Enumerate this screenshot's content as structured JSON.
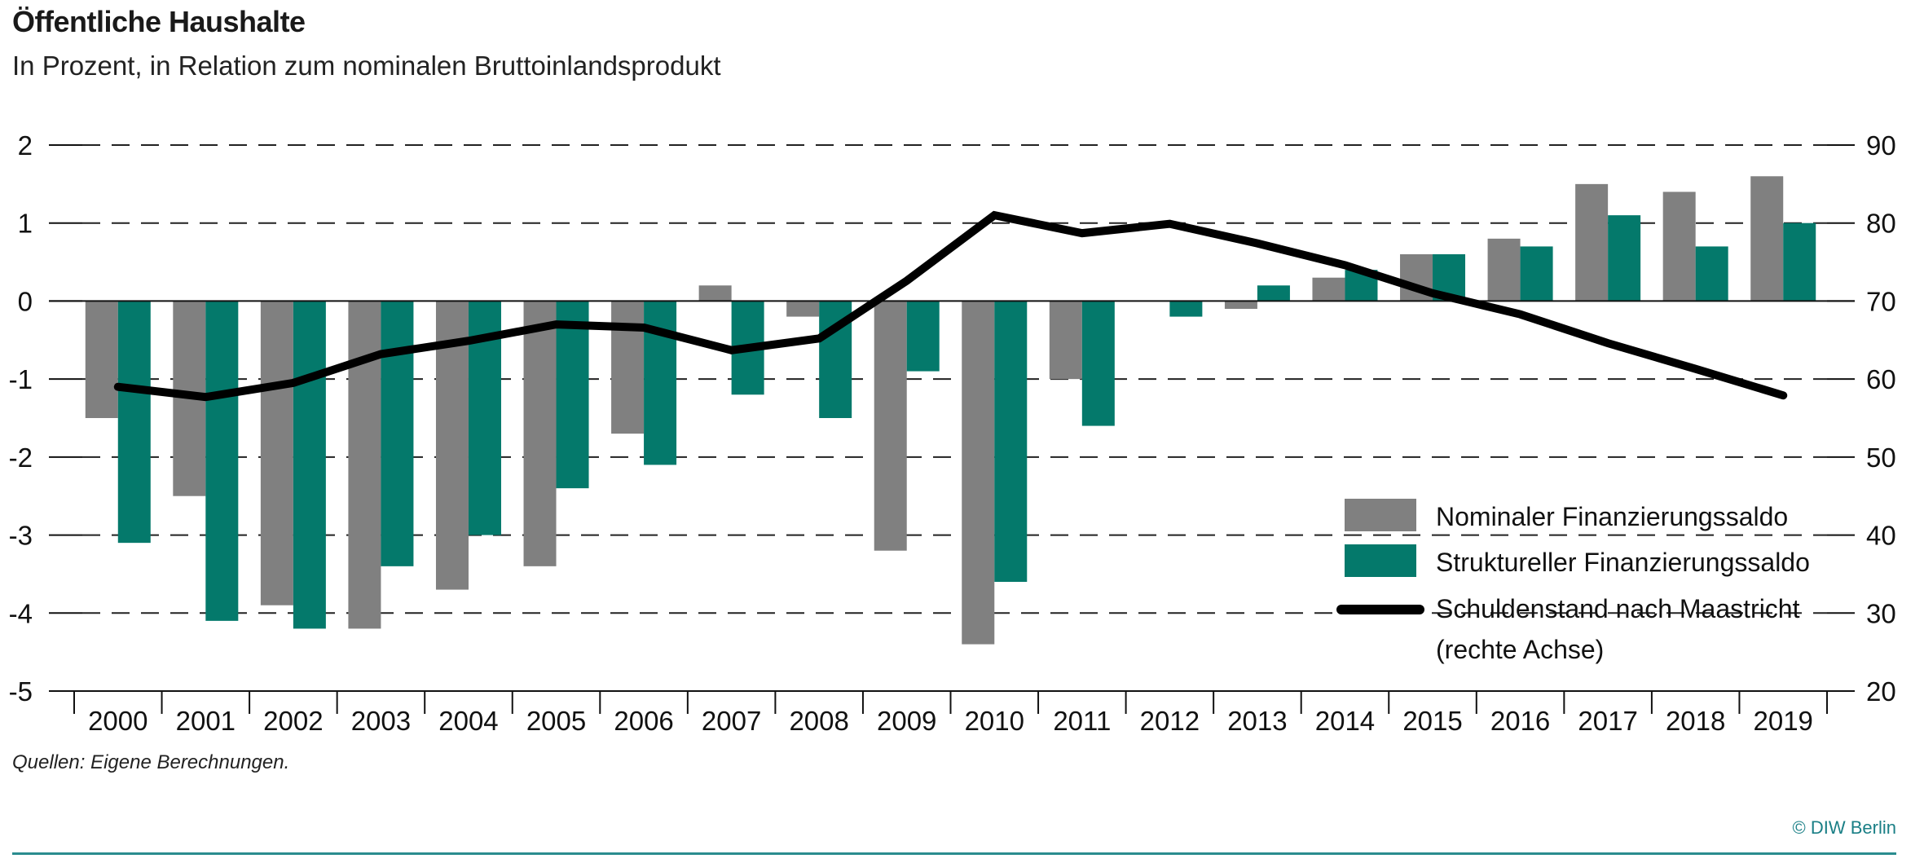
{
  "header": {
    "title": "Öffentliche Haushalte",
    "subtitle": "In Prozent, in Relation zum nominalen Bruttoinlandsprodukt"
  },
  "footer": {
    "source": "Quellen: Eigene Berechnungen.",
    "copyright": "© DIW Berlin"
  },
  "colors": {
    "nominal": "#808080",
    "structural": "#04796b",
    "debt_line": "#000000",
    "brand": "#1a7f86"
  },
  "chart_data": {
    "type": "bar",
    "title": "Öffentliche Haushalte",
    "subtitle": "In Prozent, in Relation zum nominalen Bruttoinlandsprodukt",
    "categories": [
      "2000",
      "2001",
      "2002",
      "2003",
      "2004",
      "2005",
      "2006",
      "2007",
      "2008",
      "2009",
      "2010",
      "2011",
      "2012",
      "2013",
      "2014",
      "2015",
      "2016",
      "2017",
      "2018",
      "2019"
    ],
    "series": [
      {
        "name": "Nominaler Finanzierungssaldo",
        "type": "bar",
        "axis": "left",
        "values": [
          -1.5,
          -2.5,
          -3.9,
          -4.2,
          -3.7,
          -3.4,
          -1.7,
          0.2,
          -0.2,
          -3.2,
          -4.4,
          -1.0,
          0.0,
          -0.1,
          0.3,
          0.6,
          0.8,
          1.5,
          1.4,
          1.6
        ]
      },
      {
        "name": "Struktureller Finanzierungssaldo",
        "type": "bar",
        "axis": "left",
        "values": [
          -3.1,
          -4.1,
          -4.2,
          -3.4,
          -3.0,
          -2.4,
          -2.1,
          -1.2,
          -1.5,
          -0.9,
          -3.6,
          -1.6,
          -0.2,
          0.2,
          0.4,
          0.6,
          0.7,
          1.1,
          0.7,
          1.0
        ]
      },
      {
        "name": "Schuldenstand nach Maastricht (rechte Achse)",
        "type": "line",
        "axis": "right",
        "values": [
          59.0,
          57.7,
          59.5,
          63.2,
          64.9,
          67.0,
          66.6,
          63.7,
          65.2,
          72.6,
          81.0,
          78.7,
          79.9,
          77.4,
          74.6,
          71.0,
          68.3,
          64.6,
          61.3,
          57.9
        ]
      }
    ],
    "left_axis": {
      "ylim": [
        -5,
        2
      ],
      "ticks": [
        "2",
        "1",
        "0",
        "-1",
        "-2",
        "-3",
        "-4",
        "-5"
      ],
      "tick_values": [
        2,
        1,
        0,
        -1,
        -2,
        -3,
        -4,
        -5
      ]
    },
    "right_axis": {
      "ylim": [
        20,
        90
      ],
      "ticks": [
        "90",
        "80",
        "70",
        "60",
        "50",
        "40",
        "30",
        "20"
      ],
      "tick_values": [
        90,
        80,
        70,
        60,
        50,
        40,
        30,
        20
      ]
    },
    "legend": {
      "position": "bottom-right",
      "items": [
        {
          "label": "Nominaler Finanzierungssaldo",
          "kind": "box"
        },
        {
          "label": "Struktureller Finanzierungssaldo",
          "kind": "box"
        },
        {
          "label": "Schuldenstand nach Maastricht",
          "label2": "(rechte Achse)",
          "kind": "line"
        }
      ]
    },
    "grid": true,
    "xlabel": "",
    "ylabel": ""
  }
}
